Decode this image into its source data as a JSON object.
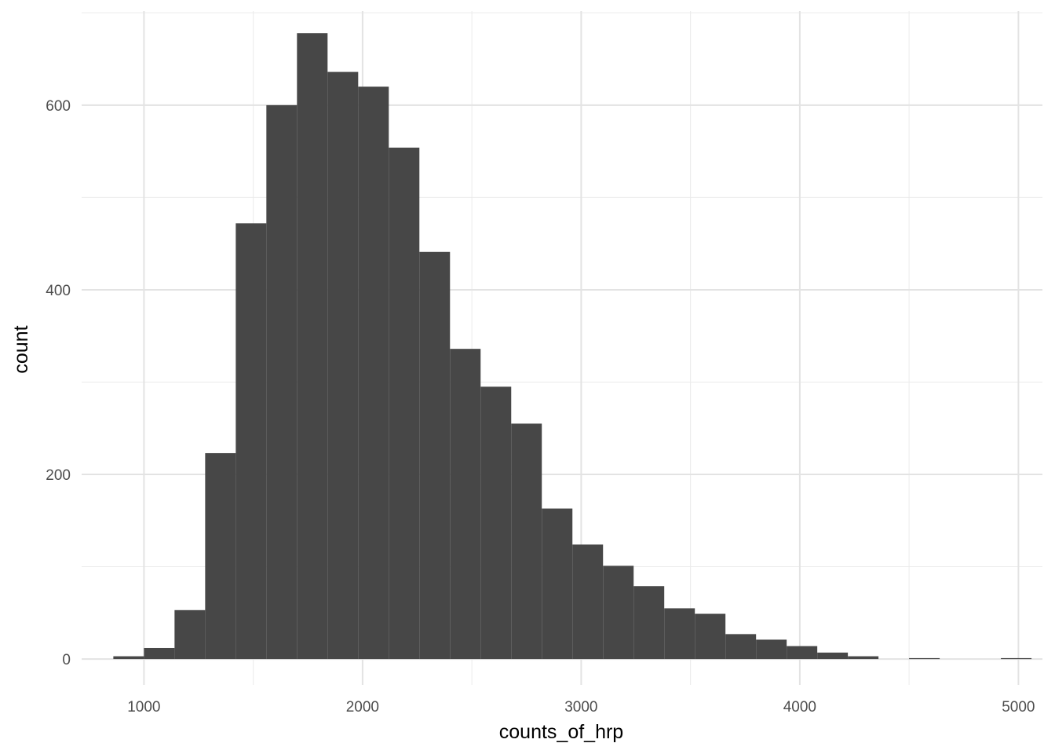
{
  "chart_data": {
    "type": "bar",
    "subtype": "histogram",
    "title": "",
    "xlabel": "counts_of_hrp",
    "ylabel": "count",
    "xlim": [
      715,
      5110
    ],
    "ylim": [
      -28,
      702
    ],
    "x_ticks": [
      1000,
      2000,
      3000,
      4000,
      5000
    ],
    "y_ticks": [
      0,
      200,
      400,
      600
    ],
    "grid": true,
    "legend": "none",
    "bar_color": "#474747",
    "bins": [
      {
        "x0": 860,
        "x1": 1000,
        "count": 3
      },
      {
        "x0": 1000,
        "x1": 1140,
        "count": 12
      },
      {
        "x0": 1140,
        "x1": 1280,
        "count": 53
      },
      {
        "x0": 1280,
        "x1": 1420,
        "count": 223
      },
      {
        "x0": 1420,
        "x1": 1560,
        "count": 472
      },
      {
        "x0": 1560,
        "x1": 1700,
        "count": 600
      },
      {
        "x0": 1700,
        "x1": 1840,
        "count": 678
      },
      {
        "x0": 1840,
        "x1": 1980,
        "count": 636
      },
      {
        "x0": 1980,
        "x1": 2120,
        "count": 620
      },
      {
        "x0": 2120,
        "x1": 2260,
        "count": 554
      },
      {
        "x0": 2260,
        "x1": 2400,
        "count": 441
      },
      {
        "x0": 2400,
        "x1": 2540,
        "count": 336
      },
      {
        "x0": 2540,
        "x1": 2680,
        "count": 295
      },
      {
        "x0": 2680,
        "x1": 2820,
        "count": 255
      },
      {
        "x0": 2820,
        "x1": 2960,
        "count": 163
      },
      {
        "x0": 2960,
        "x1": 3100,
        "count": 124
      },
      {
        "x0": 3100,
        "x1": 3240,
        "count": 101
      },
      {
        "x0": 3240,
        "x1": 3380,
        "count": 79
      },
      {
        "x0": 3380,
        "x1": 3520,
        "count": 55
      },
      {
        "x0": 3520,
        "x1": 3660,
        "count": 49
      },
      {
        "x0": 3660,
        "x1": 3800,
        "count": 27
      },
      {
        "x0": 3800,
        "x1": 3940,
        "count": 21
      },
      {
        "x0": 3940,
        "x1": 4080,
        "count": 14
      },
      {
        "x0": 4080,
        "x1": 4220,
        "count": 7
      },
      {
        "x0": 4220,
        "x1": 4360,
        "count": 3
      },
      {
        "x0": 4360,
        "x1": 4500,
        "count": 0
      },
      {
        "x0": 4500,
        "x1": 4640,
        "count": 1
      },
      {
        "x0": 4640,
        "x1": 4780,
        "count": 0
      },
      {
        "x0": 4780,
        "x1": 4920,
        "count": 0
      },
      {
        "x0": 4920,
        "x1": 5060,
        "count": 1
      }
    ]
  }
}
